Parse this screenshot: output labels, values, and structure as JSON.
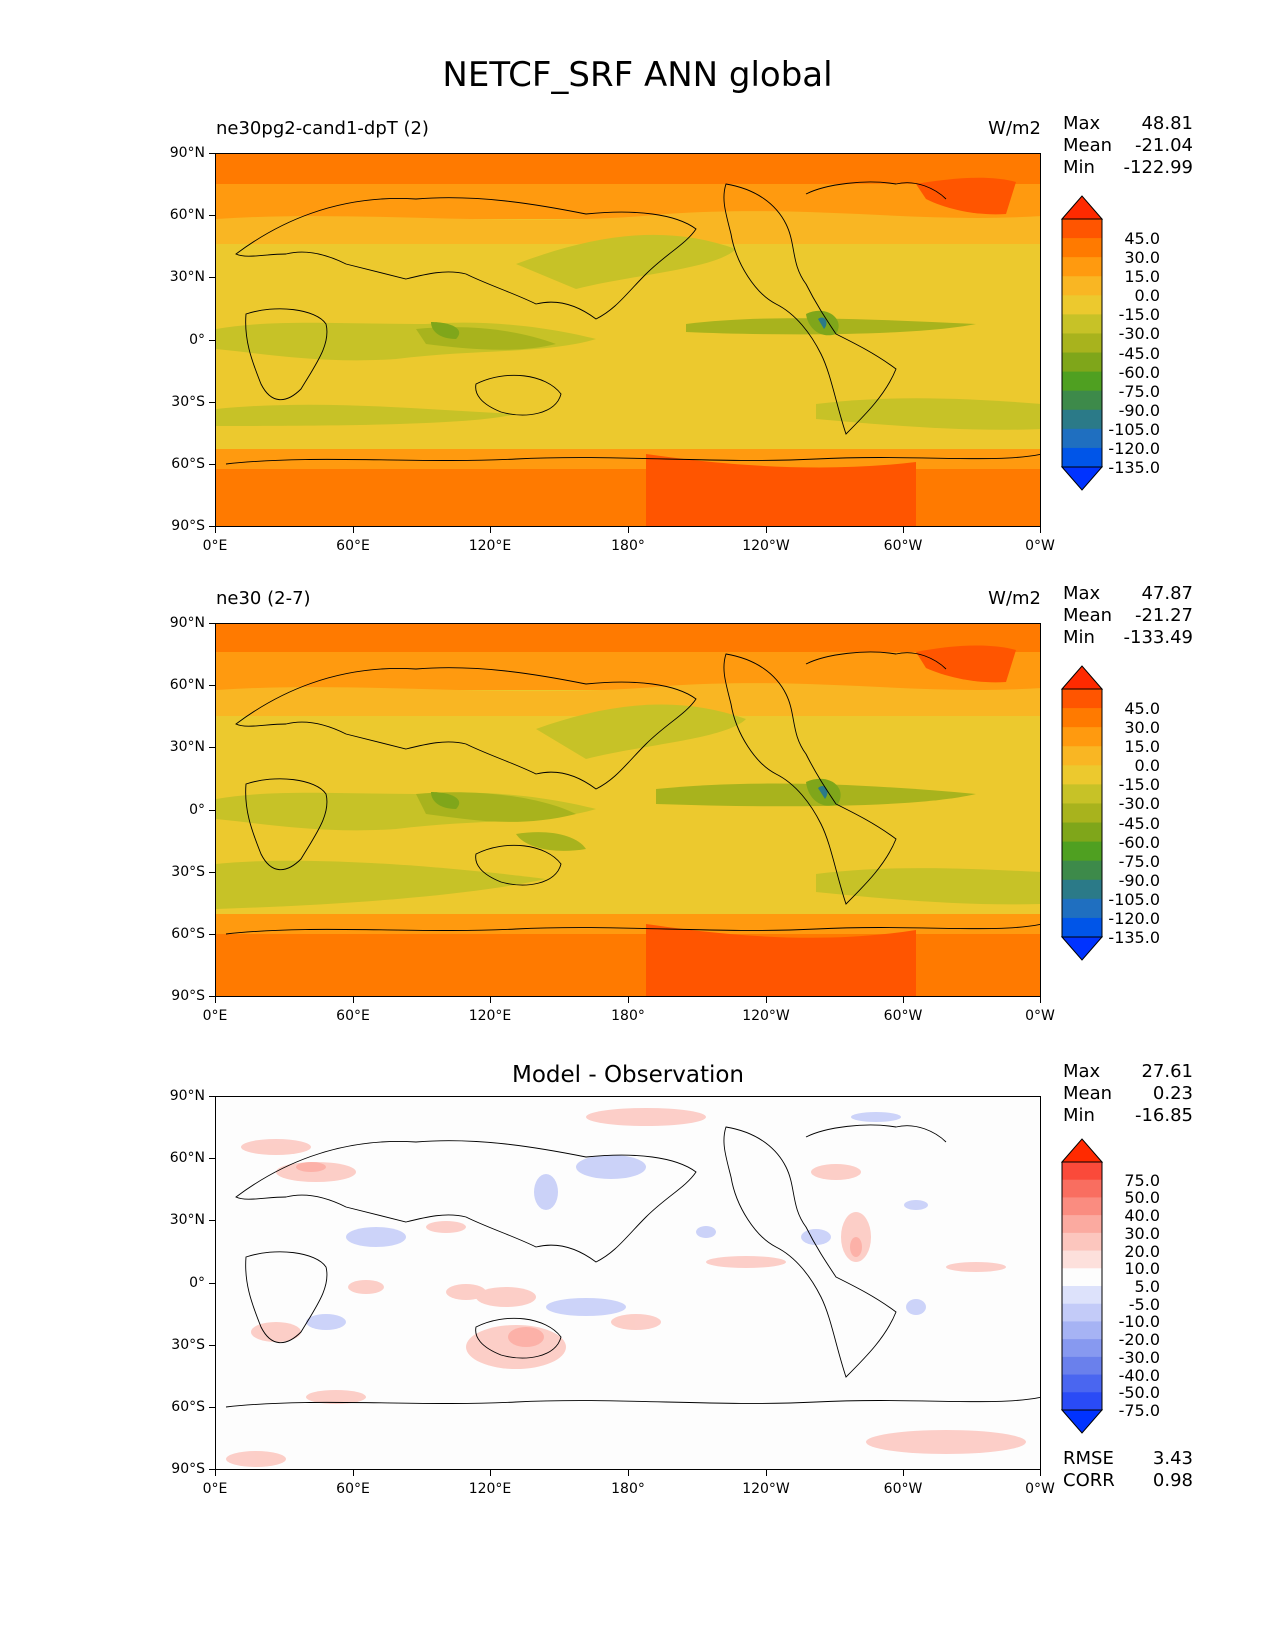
{
  "title": "NETCF_SRF ANN global",
  "lat_ticks": [
    "90°N",
    "60°N",
    "30°N",
    "0°",
    "30°S",
    "60°S",
    "90°S"
  ],
  "lon_ticks": [
    "0°E",
    "60°E",
    "120°E",
    "180°",
    "120°W",
    "60°W",
    "0°W"
  ],
  "panels": [
    {
      "name": "ne30pg2-cand1-dpT (2)",
      "units": "W/m2",
      "stats": {
        "max_label": "Max",
        "max": "48.81",
        "mean_label": "Mean",
        "mean": "-21.04",
        "min_label": "Min",
        "min": "-122.99"
      },
      "colorbar": {
        "labels": [
          "45.0",
          "30.0",
          "15.0",
          "0.0",
          "-15.0",
          "-30.0",
          "-45.0",
          "-60.0",
          "-75.0",
          "-90.0",
          "-105.0",
          "-120.0",
          "-135.0"
        ],
        "colors": [
          "#ff2a00",
          "#ff5500",
          "#ff7a00",
          "#ff9a0f",
          "#f9b623",
          "#ecc92e",
          "#c7c227",
          "#a8b31d",
          "#7fa61a",
          "#4fa021",
          "#3d8a4a",
          "#2b7a88",
          "#1f6fc0",
          "#0055e8",
          "#0033ff"
        ]
      }
    },
    {
      "name": "ne30 (2-7)",
      "units": "W/m2",
      "stats": {
        "max_label": "Max",
        "max": "47.87",
        "mean_label": "Mean",
        "mean": "-21.27",
        "min_label": "Min",
        "min": "-133.49"
      },
      "colorbar": {
        "labels": [
          "45.0",
          "30.0",
          "15.0",
          "0.0",
          "-15.0",
          "-30.0",
          "-45.0",
          "-60.0",
          "-75.0",
          "-90.0",
          "-105.0",
          "-120.0",
          "-135.0"
        ],
        "colors": [
          "#ff2a00",
          "#ff5500",
          "#ff7a00",
          "#ff9a0f",
          "#f9b623",
          "#ecc92e",
          "#c7c227",
          "#a8b31d",
          "#7fa61a",
          "#4fa021",
          "#3d8a4a",
          "#2b7a88",
          "#1f6fc0",
          "#0055e8",
          "#0033ff"
        ]
      }
    },
    {
      "title": "Model - Observation",
      "stats": {
        "max_label": "Max",
        "max": "27.61",
        "mean_label": "Mean",
        "mean": "0.23",
        "min_label": "Min",
        "min": "-16.85"
      },
      "colorbar": {
        "labels": [
          "75.0",
          "50.0",
          "40.0",
          "30.0",
          "20.0",
          "10.0",
          "5.0",
          "-5.0",
          "-10.0",
          "-20.0",
          "-30.0",
          "-40.0",
          "-50.0",
          "-75.0"
        ],
        "colors": [
          "#ff2a00",
          "#fa4a3a",
          "#f96e60",
          "#fa8c80",
          "#fbaaa0",
          "#fcc6be",
          "#fde0dc",
          "#fdfdfd",
          "#dde2fb",
          "#c3cbf8",
          "#a6b3f4",
          "#8799f0",
          "#6a80ec",
          "#4a66f0",
          "#2a4bf6",
          "#0033ff"
        ]
      },
      "rmse_label": "RMSE",
      "rmse": "3.43",
      "corr_label": "CORR",
      "corr": "0.98"
    }
  ]
}
